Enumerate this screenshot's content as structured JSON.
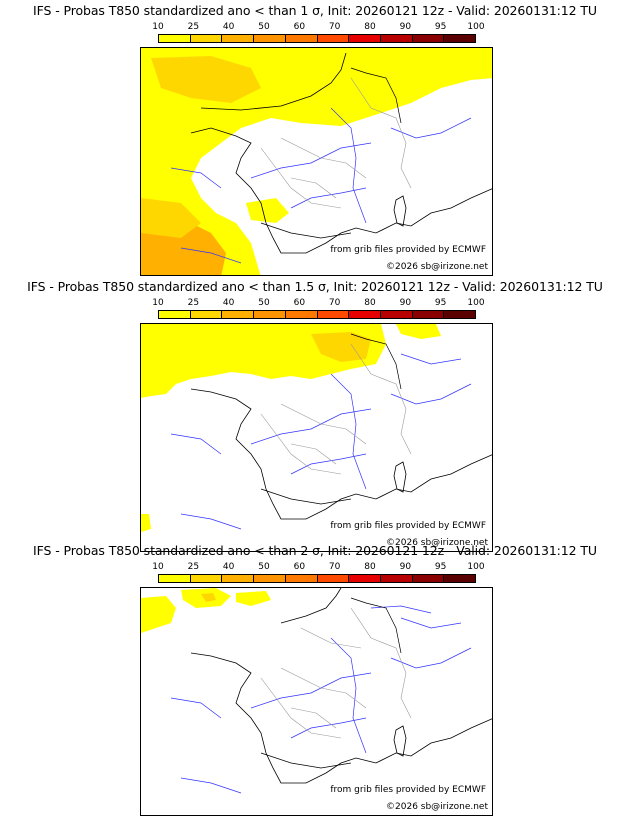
{
  "legend": {
    "ticks": [
      "10",
      "25",
      "40",
      "50",
      "60",
      "70",
      "80",
      "90",
      "95",
      "100"
    ],
    "colors": [
      "#ffff00",
      "#ffd700",
      "#ffb000",
      "#ff9400",
      "#ff7800",
      "#ff4a00",
      "#e60000",
      "#b80000",
      "#8a0000",
      "#5a0000"
    ]
  },
  "panels": [
    {
      "title": "IFS - Probas T850  standardized ano < than 1 σ, Init: 20260121 12z - Valid: 20260131:12 TU",
      "source_credit": "from grib files provided by ECMWF",
      "copyright": "©2026 sb@irizone.net",
      "coverage": "high"
    },
    {
      "title": "IFS - Probas T850  standardized ano < than 1.5 σ, Init: 20260121 12z - Valid: 20260131:12 TU",
      "source_credit": "from grib files provided by ECMWF",
      "copyright": "©2026 sb@irizone.net",
      "coverage": "medium"
    },
    {
      "title": "IFS - Probas T850  standardized ano < than 2 σ, Init: 20260121 12z - Valid: 20260131:12 TU",
      "source_credit": "from grib files provided by ECMWF",
      "copyright": "©2026 sb@irizone.net",
      "coverage": "low"
    }
  ]
}
